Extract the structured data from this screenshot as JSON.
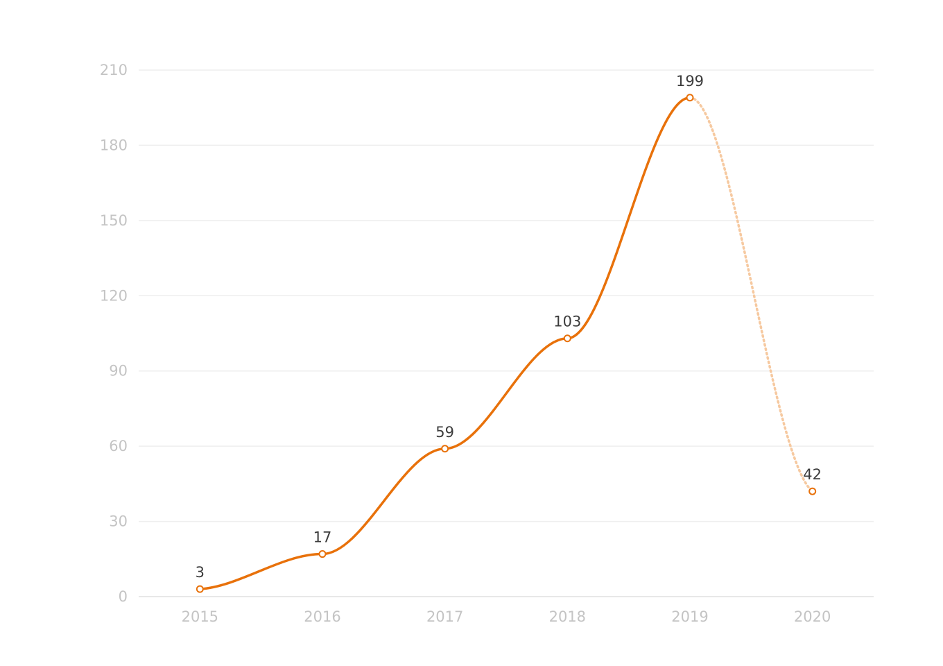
{
  "chart_data": {
    "type": "line",
    "title": "",
    "xlabel": "",
    "ylabel": "",
    "categories": [
      "2015",
      "2016",
      "2017",
      "2018",
      "2019",
      "2020"
    ],
    "series": [
      {
        "values": [
          3,
          17,
          59,
          103,
          199,
          42
        ],
        "solid_until_index": 4
      }
    ],
    "ylim": [
      0,
      210
    ],
    "yticks": [
      0,
      30,
      60,
      90,
      120,
      150,
      180,
      210
    ],
    "grid": true,
    "legend": "none",
    "colors": {
      "line": "#e8710a",
      "projection": "#f6c9a0",
      "grid": "#eeeeee",
      "tick_text": "#c4c4c4",
      "label_text": "#3c3c3c"
    }
  }
}
